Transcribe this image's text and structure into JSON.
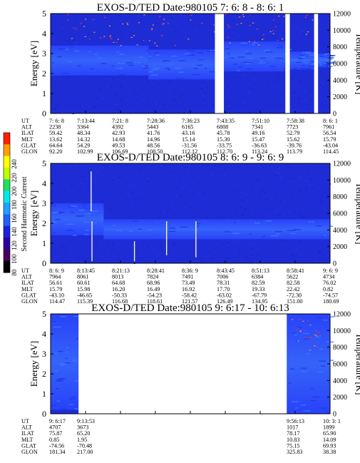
{
  "colorbar": {
    "label": "Second Harmonic Current",
    "ticks": [
      "80",
      "100",
      "120",
      "140",
      "160",
      "180",
      "200",
      "220",
      "240"
    ],
    "colors": [
      "#000000",
      "#4a0060",
      "#2a00a0",
      "#1a20e0",
      "#2060ff",
      "#20a0ff",
      "#00e8e8",
      "#20e060",
      "#c0ff00",
      "#ffff00",
      "#ffa000",
      "#ff2000"
    ]
  },
  "palette": {
    "background_blue": "#1e2cd6",
    "band_blue": "#2b52ff",
    "band_light": "#3a78ff",
    "gap_white": "#ffffff",
    "dot_orange": "#ff9a20",
    "dot_red": "#ff3030",
    "spike_white": "#f4f4d0"
  },
  "panels": [
    {
      "title": "EXOS-D/TED   Date:980105  7: 6: 8 - 8: 6: 1",
      "ylabel": "Energy [eV]",
      "yticks": [
        "0",
        "1",
        "2",
        "3",
        "4",
        "5"
      ],
      "rlabel": "Temperature [K]",
      "rticks": [
        "0",
        "2000",
        "4000",
        "6000",
        "8000",
        "10000",
        "12000"
      ],
      "data_gaps": [
        [
          0.588,
          0.62
        ],
        [
          0.84,
          0.856
        ],
        [
          0.943,
          0.957
        ]
      ],
      "orbit": {
        "row_labels": [
          "UT",
          "ALT",
          "ILAT",
          "MLT",
          "GLAT",
          "GLON"
        ],
        "columns": [
          [
            "7: 6: 8",
            "2238",
            "59.42",
            "13.62",
            "64.64",
            "92.20"
          ],
          [
            "7:13:44",
            "3364",
            "48.34",
            "14.32",
            "54.29",
            "102.99"
          ],
          [
            "7:21: 8",
            "4392",
            "42.93",
            "14.68",
            "49.53",
            "106.69"
          ],
          [
            "7:28:36",
            "5443",
            "41.76",
            "14.96",
            "48.56",
            "108.50"
          ],
          [
            "7:36:23",
            "6165",
            "43.16",
            "15.14",
            "-31.56",
            "112.12"
          ],
          [
            "7:43:35",
            "6808",
            "45.78",
            "15.30",
            "-33.75",
            "112.70"
          ],
          [
            "7:51:10",
            "7341",
            "49.16",
            "15.47",
            "-36.63",
            "113.24"
          ],
          [
            "7:58:38",
            "7723",
            "52.79",
            "15.62",
            "-39.76",
            "113.79"
          ],
          [
            "8: 6: 1",
            "7961",
            "56.54",
            "15.79",
            "-43.04",
            "114.45"
          ]
        ]
      }
    },
    {
      "title": "EXOS-D/TED   Date:980105  8: 6: 9 - 9: 6: 9",
      "ylabel": "Energy [eV]",
      "yticks": [
        "0",
        "1",
        "2",
        "3",
        "4",
        "5"
      ],
      "rlabel": "Temperature [K]",
      "rticks": [
        "0",
        "2000",
        "4000",
        "6000",
        "8000",
        "10000",
        "12000"
      ],
      "data_gaps": [],
      "orbit": {
        "row_labels": [
          "UT",
          "ALT",
          "ILAT",
          "MLT",
          "GLAT",
          "GLON"
        ],
        "columns": [
          [
            "8: 6: 9",
            "7964",
            "56.61",
            "15.79",
            "-43.10",
            "114.47"
          ],
          [
            "8:13:45",
            "8061",
            "60.61",
            "15.98",
            "-46.65",
            "115.39"
          ],
          [
            "8:21:13",
            "8013",
            "64.68",
            "16.20",
            "-50.33",
            "116.68"
          ],
          [
            "8:28:41",
            "7824",
            "68.96",
            "16.49",
            "-54.23",
            "118.61"
          ],
          [
            "8:36: 9",
            "7491",
            "73.49",
            "16.92",
            "-58.42",
            "121.57"
          ],
          [
            "8:43:45",
            "7006",
            "78.31",
            "17.70",
            "-63.02",
            "126.49"
          ],
          [
            "8:51:13",
            "6384",
            "82.59",
            "19.33",
            "-67.79",
            "134.95"
          ],
          [
            "8:58:41",
            "5622",
            "82.58",
            "22.42",
            "-72.30",
            "151.00"
          ],
          [
            "9: 6: 9",
            "4734",
            "76.02",
            "0.82",
            "-74.57",
            "180.69"
          ]
        ]
      }
    },
    {
      "title": "EXOS-D/TED   Date:980105  9: 6:17 - 10: 6:13",
      "ylabel": "Energy [eV]",
      "yticks": [
        "0",
        "1",
        "2",
        "3",
        "4",
        "5"
      ],
      "rlabel": "Temperature [K]",
      "rticks": [
        "0",
        "2000",
        "4000",
        "6000",
        "8000",
        "10000",
        "12000"
      ],
      "data_gaps": [
        [
          0.1,
          0.845
        ]
      ],
      "orbit": {
        "row_labels": [
          "UT",
          "ALT",
          "ILAT",
          "MLT",
          "GLAT",
          "GLON"
        ],
        "columns": [
          [
            "9: 6:17",
            "4707",
            "75.87",
            "0.85",
            "-74.56",
            "181.34"
          ],
          [
            "9:13:53",
            "3673",
            "65.20",
            "1.95",
            "-70.48",
            "217.00"
          ],
          [
            "",
            "",
            "",
            "",
            "",
            ""
          ],
          [
            "",
            "",
            "",
            "",
            "",
            ""
          ],
          [
            "",
            "",
            "",
            "",
            "",
            ""
          ],
          [
            "",
            "",
            "",
            "",
            "",
            ""
          ],
          [
            "",
            "",
            "",
            "",
            "",
            ""
          ],
          [
            "9:56:13",
            "1017",
            "78.17",
            "10.83",
            "75.15",
            "325.83"
          ],
          [
            "10: 3: 1",
            "1899",
            "65.90",
            "14.09",
            "69.93",
            "38.38"
          ]
        ]
      }
    }
  ],
  "chart_data": [
    {
      "type": "heatmap",
      "title": "EXOS-D/TED   Date:980105  7: 6: 8 - 8: 6: 1",
      "ylabel": "Energy [eV]",
      "ylim": [
        0,
        5
      ],
      "y2label": "Temperature [K]",
      "y2lim": [
        0,
        12000
      ],
      "x": [
        "7: 6: 8",
        "7:13:44",
        "7:21: 8",
        "7:28:36",
        "7:36:23",
        "7:43:35",
        "7:51:10",
        "7:58:38",
        "8: 6: 1"
      ],
      "colorbar": {
        "label": "Second Harmonic Current",
        "range": [
          80,
          240
        ]
      },
      "bands": [
        {
          "x_range": [
            0.0,
            0.35
          ],
          "energy_range": [
            1.9,
            3.4
          ]
        },
        {
          "x_range": [
            0.35,
            0.588
          ],
          "energy_range": [
            1.7,
            3.2
          ]
        },
        {
          "x_range": [
            0.62,
            0.84
          ],
          "energy_range": [
            2.1,
            3.6
          ]
        },
        {
          "x_range": [
            0.856,
            0.943
          ],
          "energy_range": [
            2.2,
            3.1
          ]
        },
        {
          "x_range": [
            0.957,
            1.0
          ],
          "energy_range": [
            2.3,
            3.0
          ]
        }
      ],
      "data_gaps": [
        [
          0.588,
          0.62
        ],
        [
          0.84,
          0.856
        ],
        [
          0.943,
          0.957
        ]
      ]
    },
    {
      "type": "heatmap",
      "title": "EXOS-D/TED   Date:980105  8: 6: 9 - 9: 6: 9",
      "ylabel": "Energy [eV]",
      "ylim": [
        0,
        5
      ],
      "y2label": "Temperature [K]",
      "y2lim": [
        0,
        12000
      ],
      "x": [
        "8: 6: 9",
        "8:13:45",
        "8:21:13",
        "8:28:41",
        "8:36: 9",
        "8:43:45",
        "8:51:13",
        "8:58:41",
        "9: 6: 9"
      ],
      "colorbar": {
        "label": "Second Harmonic Current",
        "range": [
          80,
          240
        ]
      },
      "bands": [
        {
          "x_range": [
            0.0,
            0.19
          ],
          "energy_range": [
            1.4,
            3.0
          ]
        },
        {
          "x_range": [
            0.19,
            1.0
          ],
          "energy_range": [
            1.2,
            2.2
          ]
        }
      ],
      "spikes": [
        {
          "x": 0.145,
          "energy_range": [
            2.6,
            4.6
          ]
        },
        {
          "x": 0.148,
          "energy_range": [
            0.1,
            2.1
          ]
        },
        {
          "x": 0.3,
          "energy_range": [
            0.1,
            1.1
          ]
        },
        {
          "x": 0.415,
          "energy_range": [
            0.4,
            2.1
          ]
        },
        {
          "x": 0.52,
          "energy_range": [
            0.3,
            2.1
          ]
        }
      ],
      "data_gaps": []
    },
    {
      "type": "heatmap",
      "title": "EXOS-D/TED   Date:980105  9: 6:17 - 10: 6:13",
      "ylabel": "Energy [eV]",
      "ylim": [
        0,
        5
      ],
      "y2label": "Temperature [K]",
      "y2lim": [
        0,
        12000
      ],
      "x": [
        "9: 6:17",
        "9:13:53",
        "9:56:13",
        "10: 3: 1"
      ],
      "colorbar": {
        "label": "Second Harmonic Current",
        "range": [
          80,
          240
        ]
      },
      "bands": [
        {
          "x_range": [
            0.0,
            0.1
          ],
          "energy_range": [
            0.2,
            5.0
          ]
        },
        {
          "x_range": [
            0.845,
            1.0
          ],
          "energy_range": [
            0.0,
            5.0
          ]
        }
      ],
      "data_gaps": [
        [
          0.1,
          0.845
        ]
      ]
    }
  ]
}
